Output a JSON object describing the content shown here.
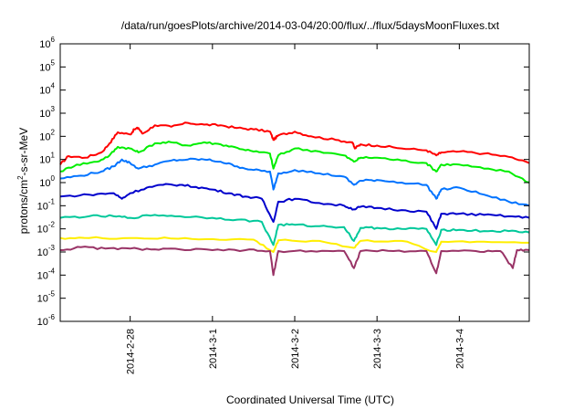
{
  "chart_data": {
    "type": "line",
    "title": "/data/run/goesPlots/archive/2014-03-04/20:00/flux/../flux/5daysMoonFluxes.txt",
    "xlabel": "Coordinated Universal Time (UTC)",
    "ylabel": "protons/cm2-s-sr-MeV",
    "ylabel_parts": {
      "before": "protons/cm",
      "sup": "2",
      "after": "-s-sr-MeV"
    },
    "y_scale": "log",
    "ylim": [
      1e-06,
      1000000.0
    ],
    "y_ticks": [
      {
        "value": 1e-06,
        "base": "10",
        "exp": "-6"
      },
      {
        "value": 1e-05,
        "base": "10",
        "exp": "-5"
      },
      {
        "value": 0.0001,
        "base": "10",
        "exp": "-4"
      },
      {
        "value": 0.001,
        "base": "10",
        "exp": "-3"
      },
      {
        "value": 0.01,
        "base": "10",
        "exp": "-2"
      },
      {
        "value": 0.1,
        "base": "10",
        "exp": "-1"
      },
      {
        "value": 1,
        "base": "10",
        "exp": "0"
      },
      {
        "value": 10,
        "base": "10",
        "exp": "1"
      },
      {
        "value": 100,
        "base": "10",
        "exp": "2"
      },
      {
        "value": 1000,
        "base": "10",
        "exp": "3"
      },
      {
        "value": 10000,
        "base": "10",
        "exp": "4"
      },
      {
        "value": 100000,
        "base": "10",
        "exp": "5"
      },
      {
        "value": 1000000,
        "base": "10",
        "exp": "6"
      }
    ],
    "x_unit": "day",
    "xlim": [
      -0.85,
      4.85
    ],
    "x_ticks": [
      {
        "value": 0,
        "label": "2014-2-28"
      },
      {
        "value": 1,
        "label": "2014-3-1"
      },
      {
        "value": 2,
        "label": "2014-3-2"
      },
      {
        "value": 3,
        "label": "2014-3-3"
      },
      {
        "value": 4,
        "label": "2014-3-4"
      }
    ],
    "grid": false,
    "legend": "none",
    "series": [
      {
        "color": "#ff0000",
        "points": [
          [
            -0.85,
            6
          ],
          [
            -0.75,
            14
          ],
          [
            -0.55,
            12
          ],
          [
            -0.35,
            20
          ],
          [
            -0.25,
            50
          ],
          [
            -0.15,
            150
          ],
          [
            0,
            120
          ],
          [
            0.05,
            200
          ],
          [
            0.1,
            230
          ],
          [
            0.15,
            130
          ],
          [
            0.3,
            300
          ],
          [
            0.5,
            260
          ],
          [
            0.7,
            380
          ],
          [
            0.9,
            320
          ],
          [
            1.1,
            300
          ],
          [
            1.3,
            230
          ],
          [
            1.5,
            200
          ],
          [
            1.7,
            160
          ],
          [
            1.74,
            70
          ],
          [
            1.8,
            110
          ],
          [
            2,
            160
          ],
          [
            2.2,
            100
          ],
          [
            2.5,
            70
          ],
          [
            2.7,
            55
          ],
          [
            2.73,
            30
          ],
          [
            2.8,
            45
          ],
          [
            3,
            40
          ],
          [
            3.3,
            30
          ],
          [
            3.6,
            25
          ],
          [
            3.72,
            15
          ],
          [
            3.78,
            20
          ],
          [
            4.0,
            22
          ],
          [
            4.3,
            18
          ],
          [
            4.6,
            13
          ],
          [
            4.85,
            7
          ]
        ]
      },
      {
        "color": "#00ee00",
        "points": [
          [
            -0.85,
            3
          ],
          [
            -0.65,
            6
          ],
          [
            -0.4,
            8
          ],
          [
            -0.25,
            15
          ],
          [
            -0.15,
            35
          ],
          [
            0,
            30
          ],
          [
            0.1,
            20
          ],
          [
            0.3,
            50
          ],
          [
            0.5,
            55
          ],
          [
            0.7,
            40
          ],
          [
            0.9,
            55
          ],
          [
            1.1,
            45
          ],
          [
            1.3,
            32
          ],
          [
            1.5,
            22
          ],
          [
            1.7,
            18
          ],
          [
            1.74,
            4
          ],
          [
            1.8,
            15
          ],
          [
            2,
            30
          ],
          [
            2.3,
            22
          ],
          [
            2.6,
            15
          ],
          [
            2.72,
            8
          ],
          [
            2.8,
            12
          ],
          [
            3,
            12
          ],
          [
            3.3,
            9
          ],
          [
            3.6,
            7
          ],
          [
            3.72,
            3
          ],
          [
            3.78,
            6
          ],
          [
            4.0,
            6
          ],
          [
            4.3,
            4
          ],
          [
            4.6,
            3
          ],
          [
            4.85,
            1
          ]
        ]
      },
      {
        "color": "#0073ff",
        "points": [
          [
            -0.85,
            1.5
          ],
          [
            -0.6,
            2
          ],
          [
            -0.35,
            3
          ],
          [
            -0.2,
            5
          ],
          [
            -0.1,
            10
          ],
          [
            0,
            7
          ],
          [
            0.1,
            4
          ],
          [
            0.3,
            6
          ],
          [
            0.5,
            9
          ],
          [
            0.7,
            10
          ],
          [
            0.9,
            10
          ],
          [
            1.1,
            8
          ],
          [
            1.3,
            5
          ],
          [
            1.5,
            3.5
          ],
          [
            1.7,
            3
          ],
          [
            1.74,
            0.5
          ],
          [
            1.8,
            2.5
          ],
          [
            2,
            3.5
          ],
          [
            2.3,
            2.5
          ],
          [
            2.6,
            1.8
          ],
          [
            2.72,
            0.8
          ],
          [
            2.8,
            1.2
          ],
          [
            3,
            1.3
          ],
          [
            3.3,
            1
          ],
          [
            3.6,
            0.8
          ],
          [
            3.72,
            0.2
          ],
          [
            3.78,
            0.5
          ],
          [
            4.0,
            0.6
          ],
          [
            4.3,
            0.3
          ],
          [
            4.6,
            0.15
          ],
          [
            4.85,
            0.1
          ]
        ]
      },
      {
        "color": "#0000cc",
        "points": [
          [
            -0.85,
            0.25
          ],
          [
            -0.5,
            0.3
          ],
          [
            -0.2,
            0.35
          ],
          [
            -0.1,
            0.2
          ],
          [
            0,
            0.35
          ],
          [
            0.2,
            0.6
          ],
          [
            0.4,
            0.8
          ],
          [
            0.6,
            0.8
          ],
          [
            0.8,
            0.65
          ],
          [
            1.0,
            0.5
          ],
          [
            1.2,
            0.35
          ],
          [
            1.4,
            0.25
          ],
          [
            1.6,
            0.2
          ],
          [
            1.74,
            0.02
          ],
          [
            1.8,
            0.15
          ],
          [
            2,
            0.2
          ],
          [
            2.3,
            0.13
          ],
          [
            2.6,
            0.1
          ],
          [
            2.72,
            0.07
          ],
          [
            2.8,
            0.09
          ],
          [
            3,
            0.08
          ],
          [
            3.3,
            0.065
          ],
          [
            3.6,
            0.055
          ],
          [
            3.72,
            0.01
          ],
          [
            3.78,
            0.045
          ],
          [
            4.0,
            0.045
          ],
          [
            4.3,
            0.04
          ],
          [
            4.6,
            0.035
          ],
          [
            4.85,
            0.03
          ]
        ]
      },
      {
        "color": "#00c89a",
        "points": [
          [
            -0.85,
            0.03
          ],
          [
            -0.5,
            0.035
          ],
          [
            -0.2,
            0.035
          ],
          [
            0,
            0.03
          ],
          [
            0.3,
            0.04
          ],
          [
            0.6,
            0.035
          ],
          [
            1.0,
            0.03
          ],
          [
            1.3,
            0.025
          ],
          [
            1.6,
            0.02
          ],
          [
            1.74,
            0.002
          ],
          [
            1.8,
            0.015
          ],
          [
            2,
            0.015
          ],
          [
            2.3,
            0.013
          ],
          [
            2.6,
            0.012
          ],
          [
            2.72,
            0.003
          ],
          [
            2.8,
            0.011
          ],
          [
            3,
            0.011
          ],
          [
            3.3,
            0.01
          ],
          [
            3.6,
            0.01
          ],
          [
            3.72,
            0.002
          ],
          [
            3.78,
            0.009
          ],
          [
            4.0,
            0.009
          ],
          [
            4.3,
            0.008
          ],
          [
            4.6,
            0.008
          ],
          [
            4.85,
            0.007
          ]
        ]
      },
      {
        "color": "#ffee00",
        "points": [
          [
            -0.85,
            0.004
          ],
          [
            -0.5,
            0.004
          ],
          [
            0,
            0.004
          ],
          [
            0.5,
            0.0038
          ],
          [
            1.0,
            0.0036
          ],
          [
            1.5,
            0.0034
          ],
          [
            1.74,
            0.001
          ],
          [
            1.8,
            0.0032
          ],
          [
            2.3,
            0.003
          ],
          [
            2.72,
            0.0015
          ],
          [
            2.8,
            0.003
          ],
          [
            3.3,
            0.003
          ],
          [
            3.72,
            0.001
          ],
          [
            3.78,
            0.0028
          ],
          [
            4.3,
            0.0028
          ],
          [
            4.85,
            0.0025
          ]
        ]
      },
      {
        "color": "#993366",
        "points": [
          [
            -0.85,
            0.0012
          ],
          [
            -0.6,
            0.0016
          ],
          [
            -0.3,
            0.0014
          ],
          [
            0,
            0.0014
          ],
          [
            0.3,
            0.0013
          ],
          [
            0.6,
            0.0013
          ],
          [
            1.0,
            0.0012
          ],
          [
            1.4,
            0.0012
          ],
          [
            1.7,
            0.0011
          ],
          [
            1.74,
            0.0001
          ],
          [
            1.8,
            0.0011
          ],
          [
            2.2,
            0.0011
          ],
          [
            2.6,
            0.0011
          ],
          [
            2.72,
            0.0002
          ],
          [
            2.8,
            0.0011
          ],
          [
            3.2,
            0.0011
          ],
          [
            3.6,
            0.0011
          ],
          [
            3.72,
            0.00012
          ],
          [
            3.78,
            0.0011
          ],
          [
            4.2,
            0.0011
          ],
          [
            4.5,
            0.0011
          ],
          [
            4.65,
            0.0002
          ],
          [
            4.7,
            0.0012
          ],
          [
            4.85,
            0.0012
          ]
        ]
      }
    ]
  }
}
